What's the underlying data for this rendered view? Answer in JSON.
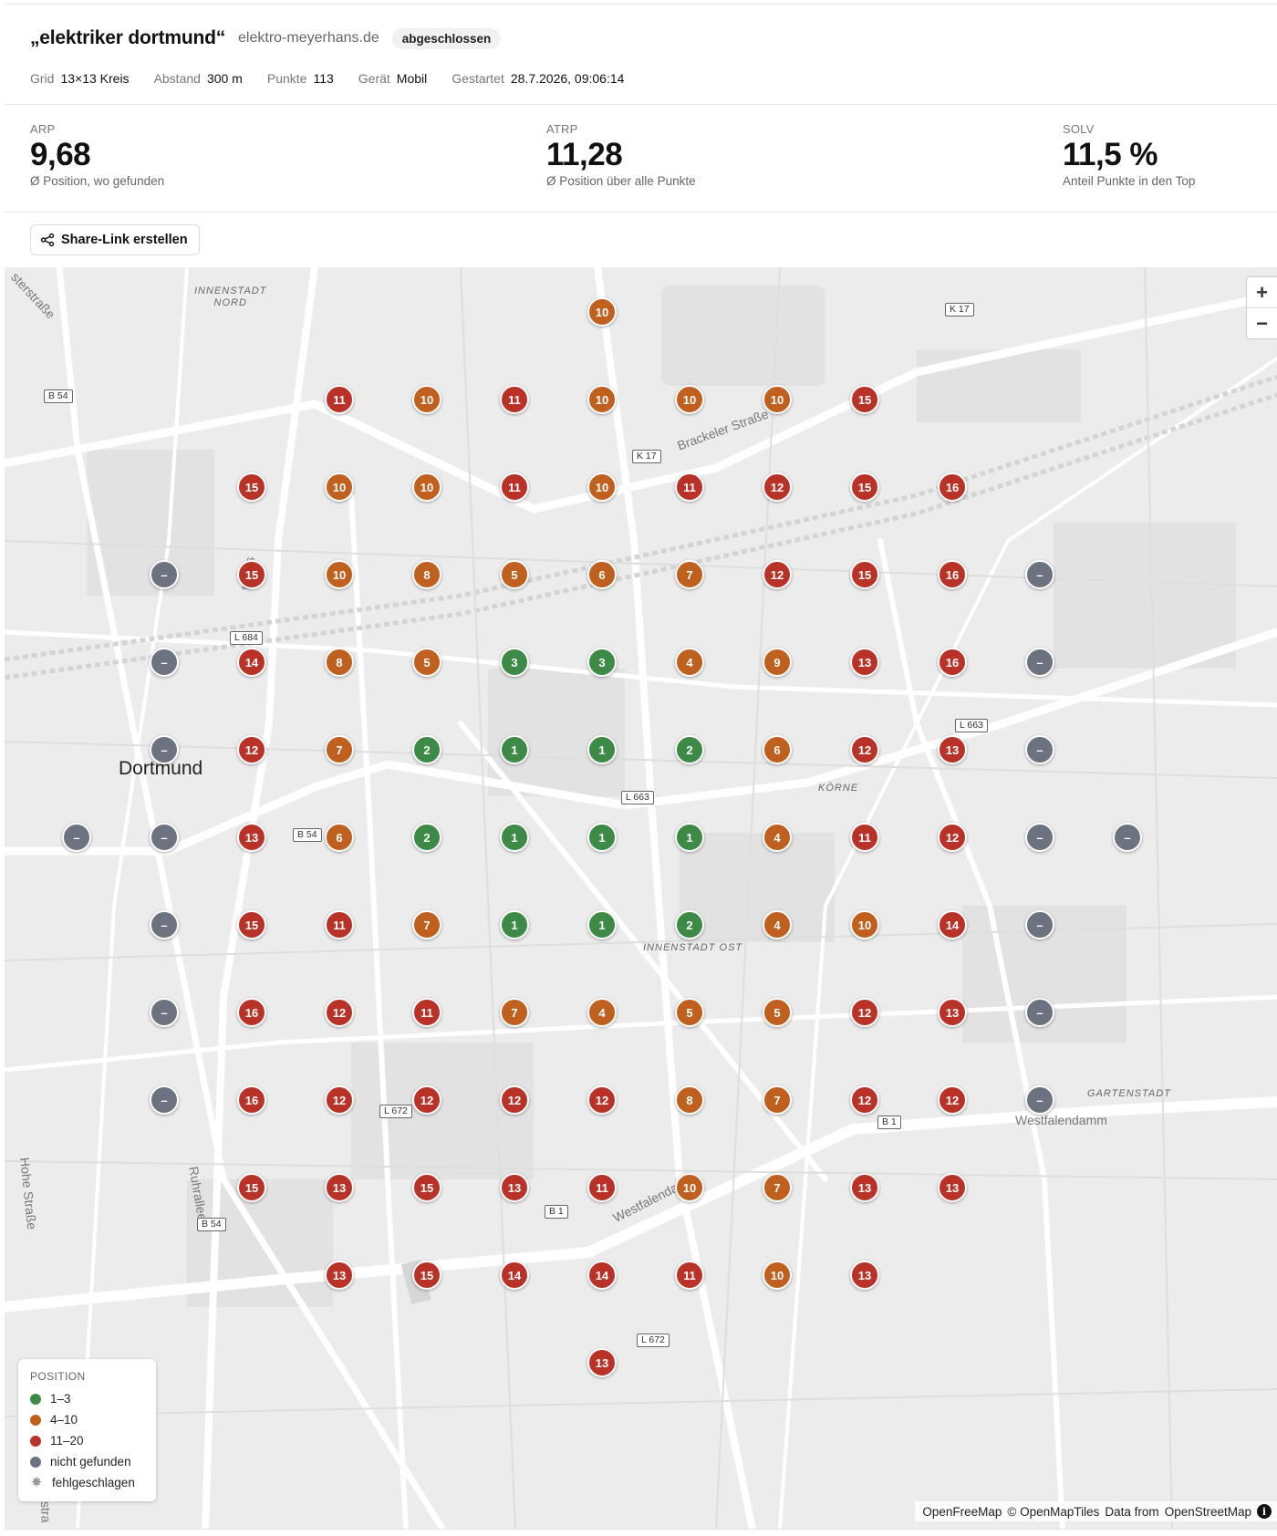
{
  "header": {
    "keyword": "„elektriker dortmund“",
    "domain": "elektro-meyerhans.de",
    "status_badge": "abgeschlossen"
  },
  "meta": [
    {
      "key": "Grid",
      "value": "13×13 Kreis"
    },
    {
      "key": "Abstand",
      "value": "300 m"
    },
    {
      "key": "Punkte",
      "value": "113"
    },
    {
      "key": "Gerät",
      "value": "Mobil"
    },
    {
      "key": "Gestartet",
      "value": "28.7.2026, 09:06:14"
    }
  ],
  "stats": [
    {
      "label": "ARP",
      "value": "9,68",
      "sub": "Ø Position, wo gefunden"
    },
    {
      "label": "ATRP",
      "value": "11,28",
      "sub": "Ø Position über alle Punkte"
    },
    {
      "label": "SOLV",
      "value": "11,5 %",
      "sub": "Anteil Punkte in den Top"
    }
  ],
  "share_button": {
    "label": "Share-Link erstellen",
    "icon": "share-icon"
  },
  "map": {
    "city_label": "Dortmund",
    "place_labels": [
      "INNENSTADT\nNORD",
      "KÖRNE",
      "INNENSTADT OST",
      "GARTENSTADT"
    ],
    "street_labels": [
      "Brackeler Straße",
      "Westfalendamm",
      "Westfalendamm",
      "Hohe Straße",
      "Ruhrallee",
      "Borns",
      "sterstraße",
      "stra"
    ],
    "road_shields": [
      "B 54",
      "K 17",
      "K 17",
      "L 684",
      "L 663",
      "L 663",
      "B 54",
      "L 672",
      "B 1",
      "B 1",
      "B 54",
      "L 672"
    ],
    "zoom_in": "+",
    "zoom_out": "−",
    "not_found_symbol": "–",
    "grid_rows": [
      [
        null,
        null,
        null,
        null,
        null,
        null,
        10,
        null,
        null,
        null,
        null,
        null,
        null
      ],
      [
        null,
        null,
        null,
        11,
        10,
        11,
        10,
        10,
        10,
        15,
        null,
        null,
        null
      ],
      [
        null,
        null,
        15,
        10,
        10,
        11,
        10,
        11,
        12,
        15,
        16,
        null,
        null
      ],
      [
        null,
        "nf",
        15,
        10,
        8,
        5,
        6,
        7,
        12,
        15,
        16,
        "nf",
        null
      ],
      [
        null,
        "nf",
        14,
        8,
        5,
        3,
        3,
        4,
        9,
        13,
        16,
        "nf",
        null
      ],
      [
        null,
        "nf",
        12,
        7,
        2,
        1,
        1,
        2,
        6,
        12,
        13,
        "nf",
        null
      ],
      [
        "nf",
        "nf",
        13,
        6,
        2,
        1,
        1,
        1,
        4,
        11,
        12,
        "nf",
        "nf"
      ],
      [
        null,
        "nf",
        15,
        11,
        7,
        1,
        1,
        2,
        4,
        10,
        14,
        "nf",
        null
      ],
      [
        null,
        "nf",
        16,
        12,
        11,
        7,
        4,
        5,
        5,
        12,
        13,
        "nf",
        null
      ],
      [
        null,
        "nf",
        16,
        12,
        12,
        12,
        12,
        8,
        7,
        12,
        12,
        "nf",
        null
      ],
      [
        null,
        null,
        15,
        13,
        15,
        13,
        11,
        10,
        7,
        13,
        13,
        null,
        null
      ],
      [
        null,
        null,
        null,
        13,
        15,
        14,
        14,
        11,
        10,
        13,
        null,
        null,
        null
      ],
      [
        null,
        null,
        null,
        null,
        null,
        null,
        13,
        null,
        null,
        null,
        null,
        null,
        null
      ]
    ],
    "colors": {
      "top3": "#3d8a47",
      "mid": "#c0601f",
      "low": "#b83228",
      "not_found": "#6b7280",
      "failed": "#9e9e9e"
    },
    "legend": {
      "title": "POSITION",
      "items": [
        {
          "label": "1–3",
          "color": "#3d8a47"
        },
        {
          "label": "4–10",
          "color": "#c0601f"
        },
        {
          "label": "11–20",
          "color": "#b83228"
        },
        {
          "label": "nicht gefunden",
          "color": "#6b7280"
        },
        {
          "label": "fehlgeschlagen",
          "color": "#9e9e9e"
        }
      ]
    },
    "attribution": {
      "openfreemap": "OpenFreeMap",
      "copy": "© OpenMapTiles",
      "data": "Data from",
      "osm": "OpenStreetMap",
      "info_icon": "info-icon"
    }
  }
}
